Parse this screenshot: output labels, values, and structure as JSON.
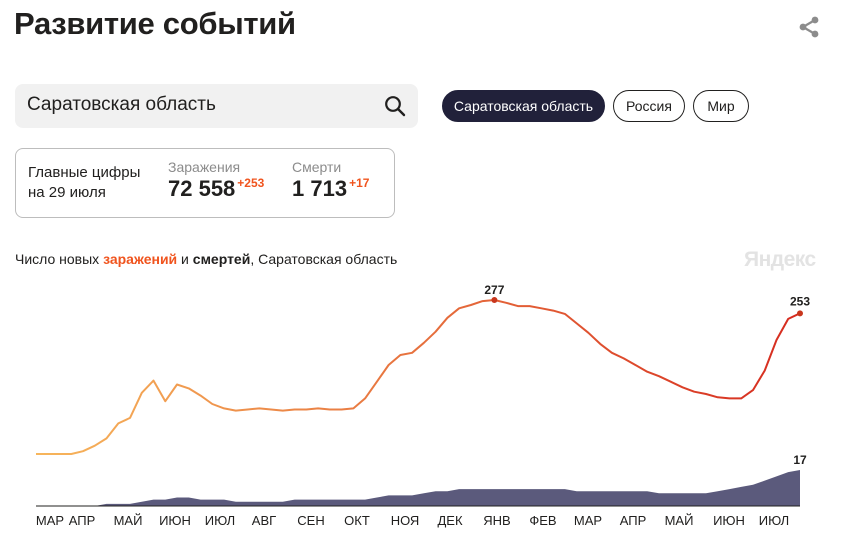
{
  "header": {
    "title": "Развитие событий",
    "share_icon": "share-icon"
  },
  "search": {
    "value": "Саратовская область",
    "icon": "search-icon"
  },
  "region_tabs": [
    {
      "label": "Саратовская область",
      "active": true
    },
    {
      "label": "Россия",
      "active": false
    },
    {
      "label": "Мир",
      "active": false
    }
  ],
  "stats": {
    "label_line1": "Главные цифры",
    "label_line2": "на 29 июля",
    "infections": {
      "name": "Заражения",
      "value": "72 558",
      "delta": "+253"
    },
    "deaths": {
      "name": "Смерти",
      "value": "1 713",
      "delta": "+17"
    }
  },
  "chart_header": {
    "prefix": "Число новых ",
    "infections_word": "заражений",
    "and": " и ",
    "deaths_word": "смертей",
    "suffix": ", Саратовская область",
    "brand": "Яндекс"
  },
  "colors": {
    "infections_start": "#f7b65c",
    "infections_end": "#d62b1f",
    "deaths_fill": "#5b5a7c",
    "accent": "#f0541e",
    "active_tab": "#21213a"
  },
  "chart_data": {
    "type": "line",
    "x_labels": [
      "МАР",
      "АПР",
      "МАЙ",
      "ИЮН",
      "ИЮЛ",
      "АВГ",
      "СЕН",
      "ОКТ",
      "НОЯ",
      "ДЕК",
      "ЯНВ",
      "ФЕВ",
      "МАР",
      "АПР",
      "МАЙ",
      "ИЮН",
      "ИЮЛ"
    ],
    "series": [
      {
        "kind": "infections",
        "values": [
          0,
          0,
          0,
          0,
          5,
          15,
          28,
          55,
          65,
          110,
          132,
          95,
          125,
          118,
          105,
          90,
          82,
          78,
          80,
          82,
          80,
          78,
          80,
          80,
          82,
          80,
          80,
          82,
          100,
          130,
          160,
          178,
          182,
          200,
          220,
          245,
          262,
          268,
          275,
          277,
          272,
          266,
          266,
          262,
          258,
          252,
          235,
          218,
          198,
          182,
          172,
          160,
          148,
          140,
          130,
          120,
          112,
          108,
          102,
          100,
          100,
          115,
          150,
          205,
          243,
          253
        ],
        "peak_label": "277",
        "end_label": "253"
      },
      {
        "kind": "deaths",
        "values": [
          0,
          0,
          0,
          0,
          0,
          0,
          1,
          1,
          1,
          2,
          3,
          3,
          4,
          4,
          3,
          3,
          3,
          2,
          2,
          2,
          2,
          2,
          3,
          3,
          3,
          3,
          3,
          3,
          3,
          4,
          5,
          5,
          5,
          6,
          7,
          7,
          8,
          8,
          8,
          8,
          8,
          8,
          8,
          8,
          8,
          8,
          7,
          7,
          7,
          7,
          7,
          7,
          7,
          6,
          6,
          6,
          6,
          6,
          7,
          8,
          9,
          10,
          12,
          14,
          16,
          17
        ],
        "end_label": "17"
      }
    ]
  }
}
